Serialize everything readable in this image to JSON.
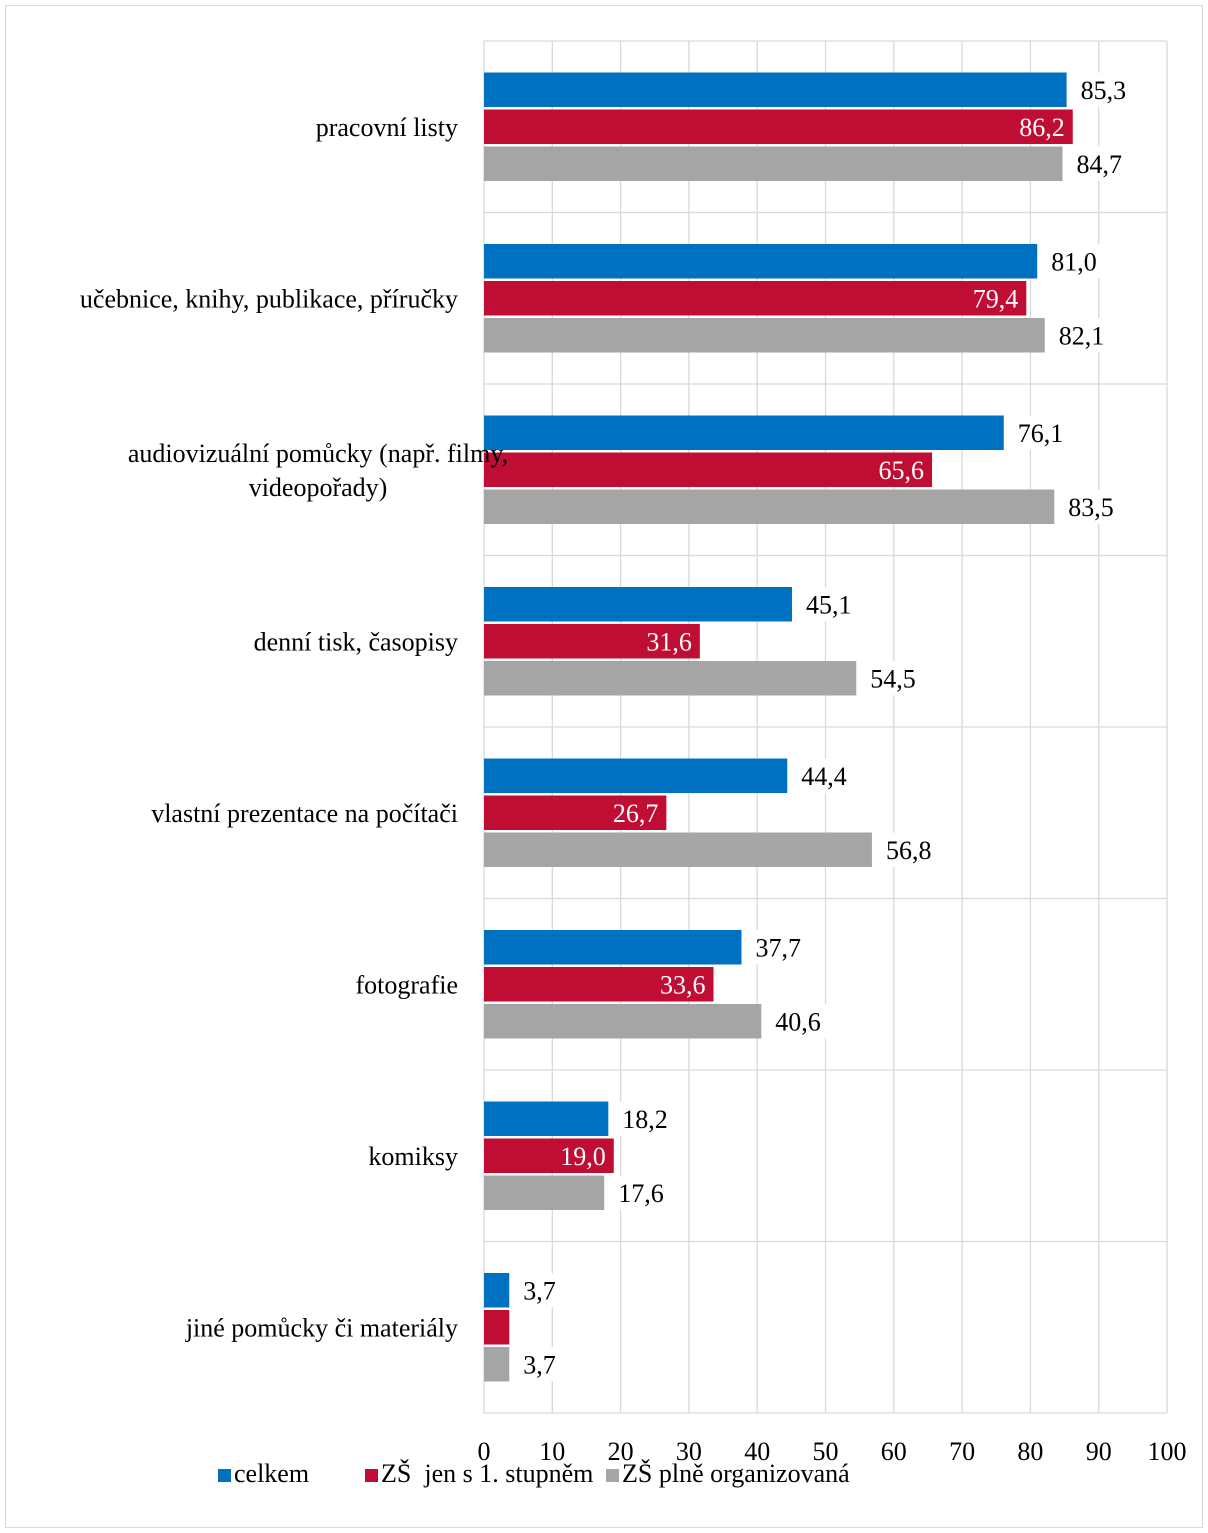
{
  "chart_data": {
    "type": "bar",
    "orientation": "horizontal",
    "title": "",
    "xlabel": "",
    "ylabel": "",
    "xlim": [
      0,
      100
    ],
    "x_ticks": [
      "0",
      "10",
      "20",
      "30",
      "40",
      "50",
      "60",
      "70",
      "80",
      "90",
      "100"
    ],
    "grid": true,
    "legend_position": "bottom",
    "categories": [
      [
        "pracovní listy"
      ],
      [
        "učebnice, knihy, publikace, příručky"
      ],
      [
        "audiovizuální pomůcky (např. filmy,",
        "videopořady)"
      ],
      [
        "denní tisk, časopisy"
      ],
      [
        "vlastní prezentace na počítači"
      ],
      [
        "fotografie"
      ],
      [
        "komiksy"
      ],
      [
        "jiné pomůcky či materiály"
      ]
    ],
    "series": [
      {
        "name": "celkem",
        "color": "#0070c0",
        "values": [
          85.3,
          81.0,
          76.1,
          45.1,
          44.4,
          37.7,
          18.2,
          3.7
        ],
        "labels": [
          "85,3",
          "81,0",
          "76,1",
          "45,1",
          "44,4",
          "37,7",
          "18,2",
          "3,7"
        ]
      },
      {
        "name": "ZŠ  jen s 1. stupněm",
        "color": "#c00d33",
        "values": [
          86.2,
          79.4,
          65.6,
          31.6,
          26.7,
          33.6,
          19.0,
          3.7
        ],
        "labels": [
          "86,2",
          "79,4",
          "65,6",
          "31,6",
          "26,7",
          "33,6",
          "19,0",
          ""
        ]
      },
      {
        "name": "ZŠ plně organizovaná",
        "color": "#a5a5a5",
        "values": [
          84.7,
          82.1,
          83.5,
          54.5,
          56.8,
          40.6,
          17.6,
          3.7
        ],
        "labels": [
          "84,7",
          "82,1",
          "83,5",
          "54,5",
          "56,8",
          "40,6",
          "17,6",
          "3,7"
        ]
      }
    ]
  }
}
